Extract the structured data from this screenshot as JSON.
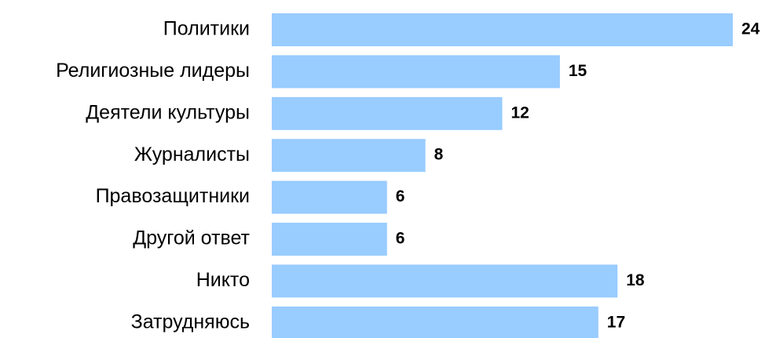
{
  "chart_data": {
    "type": "bar",
    "orientation": "horizontal",
    "categories": [
      "Политики",
      "Религиозные лидеры",
      "Деятели культуры",
      "Журналисты",
      "Правозащитники",
      "Другой ответ",
      "Никто",
      "Затрудняюсь"
    ],
    "values": [
      24,
      15,
      12,
      8,
      6,
      6,
      18,
      17
    ],
    "color": "#99ccff"
  }
}
